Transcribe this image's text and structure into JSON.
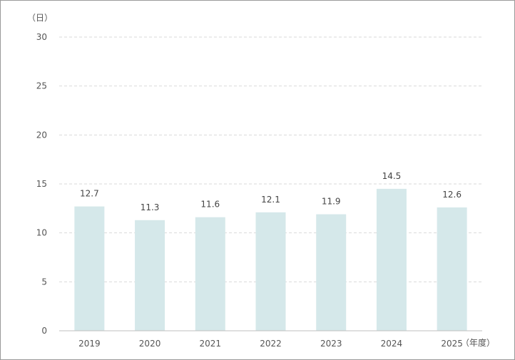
{
  "chart_data": {
    "type": "bar",
    "y_unit_label": "（日）",
    "x_unit_label": "（年度）",
    "categories": [
      "2019",
      "2020",
      "2021",
      "2022",
      "2023",
      "2024",
      "2025"
    ],
    "values": [
      12.7,
      11.3,
      11.6,
      12.1,
      11.9,
      14.5,
      12.6
    ],
    "data_labels": [
      "12.7",
      "11.3",
      "11.6",
      "12.1",
      "11.9",
      "14.5",
      "12.6"
    ],
    "yticks": [
      "0",
      "5",
      "10",
      "15",
      "20",
      "25",
      "30"
    ],
    "ylim": [
      0,
      30
    ],
    "grid": "horizontal dashed",
    "legend": "none",
    "colors": {
      "bar": "#d5e8ea",
      "grid": "#d9d9d9",
      "axis": "#bfbfbf",
      "text": "#555555"
    }
  }
}
